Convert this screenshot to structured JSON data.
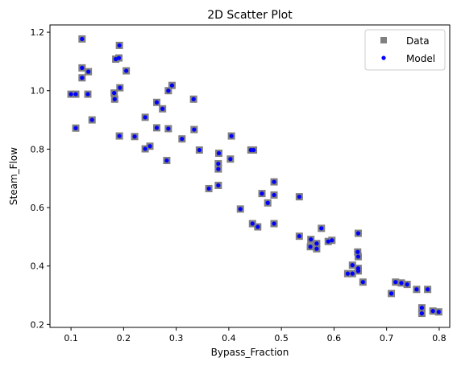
{
  "chart_data": {
    "type": "scatter",
    "title": "2D Scatter Plot",
    "xlabel": "Bypass_Fraction",
    "ylabel": "Steam_Flow",
    "xlim": [
      0.06,
      0.82
    ],
    "ylim": [
      0.19,
      1.225
    ],
    "xticks": [
      0.1,
      0.2,
      0.3,
      0.4,
      0.5,
      0.6,
      0.7,
      0.8
    ],
    "xtick_labels": [
      "0.1",
      "0.2",
      "0.3",
      "0.4",
      "0.5",
      "0.6",
      "0.7",
      "0.8"
    ],
    "yticks": [
      0.2,
      0.4,
      0.6,
      0.8,
      1.0,
      1.2
    ],
    "ytick_labels": [
      "0.2",
      "0.4",
      "0.6",
      "0.8",
      "1.0",
      "1.2"
    ],
    "grid": false,
    "legend_position": "top-right",
    "series": [
      {
        "name": "Data",
        "marker": "square",
        "color": "#808080",
        "x": [
          0.121,
          0.192,
          0.121,
          0.133,
          0.185,
          0.191,
          0.121,
          0.205,
          0.1,
          0.109,
          0.132,
          0.193,
          0.182,
          0.183,
          0.14,
          0.109,
          0.292,
          0.285,
          0.333,
          0.263,
          0.274,
          0.285,
          0.263,
          0.241,
          0.334,
          0.311,
          0.192,
          0.221,
          0.344,
          0.25,
          0.241,
          0.282,
          0.405,
          0.381,
          0.442,
          0.447,
          0.38,
          0.38,
          0.403,
          0.38,
          0.362,
          0.486,
          0.486,
          0.463,
          0.534,
          0.474,
          0.422,
          0.445,
          0.455,
          0.486,
          0.646,
          0.576,
          0.534,
          0.556,
          0.589,
          0.567,
          0.555,
          0.567,
          0.596,
          0.645,
          0.635,
          0.646,
          0.646,
          0.626,
          0.646,
          0.635,
          0.655,
          0.717,
          0.728,
          0.739,
          0.757,
          0.778,
          0.709,
          0.767,
          0.767,
          0.788,
          0.799
        ],
        "y": [
          1.177,
          1.155,
          1.078,
          1.065,
          1.108,
          1.112,
          1.044,
          1.068,
          0.988,
          0.988,
          0.988,
          1.01,
          0.992,
          0.971,
          0.9,
          0.872,
          1.018,
          1.0,
          0.971,
          0.96,
          0.938,
          0.87,
          0.873,
          0.909,
          0.867,
          0.835,
          0.845,
          0.843,
          0.797,
          0.81,
          0.801,
          0.761,
          0.845,
          0.786,
          0.797,
          0.797,
          0.75,
          0.732,
          0.766,
          0.676,
          0.665,
          0.688,
          0.643,
          0.648,
          0.637,
          0.616,
          0.595,
          0.545,
          0.534,
          0.545,
          0.512,
          0.529,
          0.502,
          0.491,
          0.484,
          0.477,
          0.466,
          0.459,
          0.488,
          0.448,
          0.403,
          0.432,
          0.392,
          0.374,
          0.383,
          0.374,
          0.345,
          0.345,
          0.342,
          0.337,
          0.32,
          0.32,
          0.306,
          0.257,
          0.238,
          0.246,
          0.243
        ]
      },
      {
        "name": "Model",
        "marker": "circle",
        "color": "#0000ff",
        "x": [
          0.121,
          0.192,
          0.121,
          0.133,
          0.185,
          0.191,
          0.121,
          0.205,
          0.1,
          0.109,
          0.132,
          0.193,
          0.182,
          0.183,
          0.14,
          0.109,
          0.292,
          0.285,
          0.333,
          0.263,
          0.274,
          0.285,
          0.263,
          0.241,
          0.334,
          0.311,
          0.192,
          0.221,
          0.344,
          0.25,
          0.241,
          0.282,
          0.405,
          0.381,
          0.442,
          0.447,
          0.38,
          0.38,
          0.403,
          0.38,
          0.362,
          0.486,
          0.486,
          0.463,
          0.534,
          0.474,
          0.422,
          0.445,
          0.455,
          0.486,
          0.646,
          0.576,
          0.534,
          0.556,
          0.589,
          0.567,
          0.555,
          0.567,
          0.596,
          0.645,
          0.635,
          0.646,
          0.646,
          0.626,
          0.646,
          0.635,
          0.655,
          0.717,
          0.728,
          0.739,
          0.757,
          0.778,
          0.709,
          0.767,
          0.767,
          0.788,
          0.799
        ],
        "y": [
          1.177,
          1.155,
          1.078,
          1.065,
          1.108,
          1.112,
          1.044,
          1.068,
          0.988,
          0.988,
          0.988,
          1.01,
          0.992,
          0.971,
          0.9,
          0.872,
          1.018,
          1.0,
          0.971,
          0.96,
          0.938,
          0.87,
          0.873,
          0.909,
          0.867,
          0.835,
          0.845,
          0.843,
          0.797,
          0.81,
          0.801,
          0.761,
          0.845,
          0.786,
          0.797,
          0.797,
          0.75,
          0.732,
          0.766,
          0.676,
          0.665,
          0.688,
          0.643,
          0.648,
          0.637,
          0.616,
          0.595,
          0.545,
          0.534,
          0.545,
          0.512,
          0.529,
          0.502,
          0.491,
          0.484,
          0.477,
          0.466,
          0.459,
          0.488,
          0.448,
          0.403,
          0.432,
          0.392,
          0.374,
          0.383,
          0.374,
          0.345,
          0.345,
          0.342,
          0.337,
          0.32,
          0.32,
          0.306,
          0.257,
          0.238,
          0.246,
          0.243
        ]
      }
    ]
  }
}
